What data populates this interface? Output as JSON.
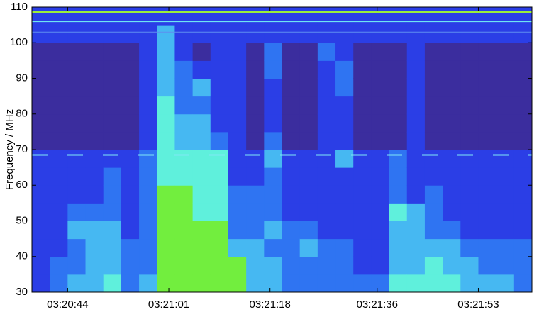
{
  "chart_data": {
    "type": "heatmap",
    "ylabel": "Frequency / MHz",
    "ylim": [
      30,
      110
    ],
    "yticks": [
      30,
      40,
      50,
      60,
      70,
      80,
      90,
      100,
      110
    ],
    "xlim": [
      38,
      122
    ],
    "xticks": [
      {
        "value": 44,
        "label": "03:20:44"
      },
      {
        "value": 61,
        "label": "03:21:01"
      },
      {
        "value": 78,
        "label": "03:21:18"
      },
      {
        "value": 96,
        "label": "03:21:36"
      },
      {
        "value": 113,
        "label": "03:21:53"
      }
    ],
    "xbins": [
      38,
      41,
      44,
      47,
      50,
      53,
      56,
      59,
      62,
      65,
      68,
      71,
      74,
      77,
      80,
      83,
      86,
      89,
      92,
      95,
      98,
      101,
      104,
      107,
      110,
      113,
      116,
      119,
      122
    ],
    "ybins": [
      30,
      35,
      40,
      45,
      50,
      55,
      60,
      65,
      70,
      75,
      80,
      85,
      90,
      95,
      100,
      105,
      110
    ],
    "colorscale": [
      "#3b2d9e",
      "#2b3ee6",
      "#2f74f2",
      "#46b8f2",
      "#5ff0dc",
      "#72ee3e"
    ],
    "z": [
      [
        1,
        1,
        1,
        1,
        1,
        1,
        1,
        1,
        0,
        0,
        0,
        0,
        0,
        0,
        1,
        1
      ],
      [
        2,
        2,
        1,
        1,
        1,
        1,
        1,
        1,
        0,
        0,
        0,
        0,
        0,
        0,
        1,
        1
      ],
      [
        3,
        2,
        2,
        3,
        2,
        1,
        1,
        1,
        0,
        0,
        0,
        0,
        0,
        0,
        1,
        1
      ],
      [
        3,
        3,
        3,
        3,
        2,
        1,
        1,
        1,
        0,
        0,
        0,
        0,
        0,
        0,
        1,
        1
      ],
      [
        4,
        3,
        3,
        3,
        2,
        2,
        2,
        1,
        0,
        0,
        0,
        0,
        0,
        0,
        1,
        1
      ],
      [
        2,
        2,
        2,
        1,
        1,
        1,
        1,
        1,
        0,
        0,
        0,
        0,
        0,
        0,
        1,
        1
      ],
      [
        3,
        2,
        2,
        2,
        2,
        2,
        2,
        2,
        1,
        1,
        1,
        1,
        1,
        1,
        1,
        1
      ],
      [
        5,
        5,
        5,
        5,
        5,
        5,
        4,
        4,
        4,
        4,
        4,
        3,
        3,
        3,
        3,
        1
      ],
      [
        5,
        5,
        5,
        5,
        5,
        5,
        4,
        4,
        3,
        3,
        2,
        2,
        2,
        1,
        1,
        1
      ],
      [
        5,
        5,
        5,
        5,
        4,
        4,
        4,
        4,
        3,
        3,
        2,
        3,
        1,
        0,
        1,
        1
      ],
      [
        5,
        5,
        5,
        5,
        4,
        4,
        4,
        4,
        2,
        1,
        1,
        1,
        1,
        1,
        1,
        1
      ],
      [
        5,
        5,
        3,
        2,
        2,
        2,
        1,
        1,
        1,
        1,
        1,
        1,
        1,
        1,
        1,
        1
      ],
      [
        3,
        3,
        3,
        2,
        2,
        2,
        1,
        1,
        0,
        0,
        0,
        0,
        0,
        0,
        1,
        1
      ],
      [
        3,
        3,
        2,
        3,
        2,
        2,
        2,
        3,
        2,
        1,
        1,
        1,
        2,
        2,
        1,
        1
      ],
      [
        2,
        2,
        2,
        2,
        1,
        1,
        1,
        1,
        0,
        0,
        0,
        0,
        0,
        0,
        1,
        1
      ],
      [
        2,
        2,
        3,
        2,
        1,
        1,
        1,
        1,
        0,
        0,
        0,
        0,
        0,
        0,
        1,
        1
      ],
      [
        2,
        2,
        2,
        1,
        1,
        1,
        1,
        1,
        1,
        1,
        1,
        1,
        1,
        2,
        1,
        1
      ],
      [
        2,
        2,
        2,
        1,
        1,
        1,
        1,
        3,
        1,
        1,
        1,
        2,
        2,
        1,
        1,
        1
      ],
      [
        2,
        1,
        1,
        1,
        1,
        1,
        1,
        1,
        0,
        0,
        0,
        0,
        0,
        0,
        1,
        1
      ],
      [
        2,
        1,
        1,
        1,
        1,
        1,
        1,
        1,
        0,
        0,
        0,
        0,
        0,
        0,
        1,
        1
      ],
      [
        4,
        3,
        3,
        3,
        4,
        2,
        2,
        2,
        0,
        0,
        0,
        0,
        0,
        0,
        1,
        1
      ],
      [
        4,
        3,
        3,
        3,
        3,
        1,
        1,
        1,
        1,
        1,
        1,
        1,
        1,
        1,
        1,
        1
      ],
      [
        4,
        4,
        3,
        2,
        2,
        2,
        1,
        1,
        0,
        0,
        0,
        0,
        0,
        0,
        1,
        1
      ],
      [
        4,
        3,
        3,
        2,
        1,
        1,
        1,
        1,
        0,
        0,
        0,
        0,
        0,
        0,
        1,
        1
      ],
      [
        3,
        3,
        2,
        1,
        1,
        1,
        1,
        1,
        0,
        0,
        0,
        0,
        0,
        0,
        1,
        1
      ],
      [
        3,
        2,
        2,
        1,
        1,
        1,
        1,
        1,
        0,
        0,
        0,
        0,
        0,
        0,
        1,
        1
      ],
      [
        3,
        2,
        2,
        1,
        1,
        1,
        1,
        1,
        0,
        0,
        0,
        0,
        0,
        0,
        1,
        1
      ],
      [
        2,
        2,
        2,
        1,
        1,
        1,
        1,
        1,
        0,
        0,
        0,
        0,
        0,
        0,
        1,
        1
      ]
    ]
  }
}
